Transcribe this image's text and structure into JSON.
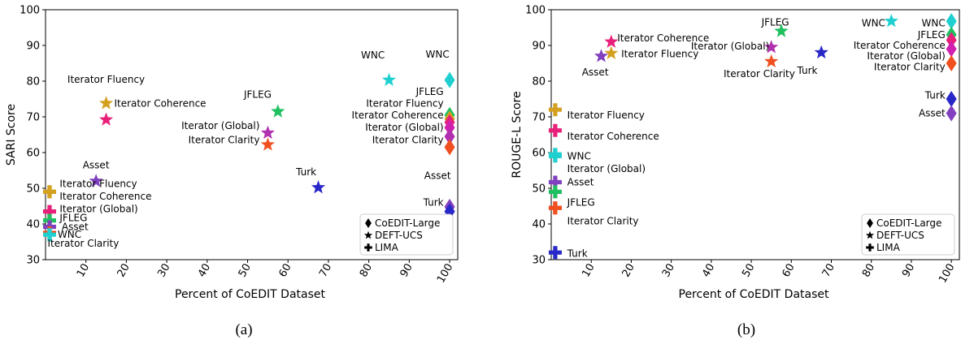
{
  "chart_data": [
    {
      "type": "scatter",
      "caption": "(a)",
      "xlabel": "Percent of CoEDIT Dataset",
      "ylabel": "SARI Score",
      "xlim": [
        0,
        102
      ],
      "ylim": [
        30,
        100
      ],
      "xticks": [
        10,
        20,
        30,
        40,
        50,
        60,
        70,
        80,
        90,
        100
      ],
      "yticks": [
        30,
        40,
        50,
        60,
        70,
        80,
        90,
        100
      ],
      "grid": false,
      "legend_position": "bottom-right",
      "legend": [
        {
          "label": "CoEDIT-Large",
          "marker": "diamond"
        },
        {
          "label": "DEFT-UCS",
          "marker": "star"
        },
        {
          "label": "LIMA",
          "marker": "plus"
        }
      ],
      "points": [
        {
          "marker": "star",
          "x": 15,
          "y": 73.8,
          "color": "#D4A020",
          "label": "Iterator Coherence",
          "lx": 17,
          "ly": 73.8,
          "anchor": "start"
        },
        {
          "marker": "star",
          "x": 15,
          "y": 69.2,
          "color": "#E8207A",
          "label": "Iterator Fluency",
          "lx": 15,
          "ly": 80.5,
          "anchor": "middle"
        },
        {
          "marker": "star",
          "x": 57.5,
          "y": 71.5,
          "color": "#20C060",
          "label": "JFLEG",
          "lx": 52.5,
          "ly": 76.3,
          "anchor": "middle"
        },
        {
          "marker": "star",
          "x": 55,
          "y": 65.5,
          "color": "#B030B0",
          "label": "Iterator (Global)",
          "lx": 53,
          "ly": 67.5,
          "anchor": "end"
        },
        {
          "marker": "star",
          "x": 55,
          "y": 62.2,
          "color": "#F05020",
          "label": "Iterator Clarity",
          "lx": 53,
          "ly": 63.5,
          "anchor": "end"
        },
        {
          "marker": "star",
          "x": 12.5,
          "y": 52,
          "color": "#8040C0",
          "label": "Asset",
          "lx": 12.5,
          "ly": 56.5,
          "anchor": "middle"
        },
        {
          "marker": "star",
          "x": 67.5,
          "y": 50.2,
          "color": "#2828C8",
          "label": "Turk",
          "lx": 64.5,
          "ly": 54.5,
          "anchor": "middle"
        },
        {
          "marker": "star",
          "x": 85,
          "y": 80.3,
          "color": "#20D0D0",
          "label": "WNC",
          "lx": 81,
          "ly": 87.3,
          "anchor": "middle"
        },
        {
          "marker": "diamond",
          "x": 100,
          "y": 80.3,
          "color": "#20D0D0",
          "label": "WNC",
          "lx": 97,
          "ly": 87.5,
          "anchor": "middle"
        },
        {
          "marker": "diamond",
          "x": 100,
          "y": 70.5,
          "color": "#20C060",
          "label": "JFLEG",
          "lx": 98.5,
          "ly": 77,
          "anchor": "end"
        },
        {
          "marker": "diamond",
          "x": 100,
          "y": 69.5,
          "color": "#D4A020",
          "label": "Iterator Fluency",
          "lx": 98.5,
          "ly": 73.7,
          "anchor": "end"
        },
        {
          "marker": "diamond",
          "x": 100,
          "y": 68.5,
          "color": "#E8207A",
          "label": "Iterator Coherence",
          "lx": 98.5,
          "ly": 70.5,
          "anchor": "end"
        },
        {
          "marker": "diamond",
          "x": 100,
          "y": 67,
          "color": "#D020B0",
          "label": "Iterator (Global)",
          "lx": 98.5,
          "ly": 67,
          "anchor": "end"
        },
        {
          "marker": "diamond",
          "x": 100,
          "y": 64.5,
          "color": "#B030B0",
          "label": "Iterator Clarity",
          "lx": 98.5,
          "ly": 63.5,
          "anchor": "end"
        },
        {
          "marker": "diamond",
          "x": 100,
          "y": 61.5,
          "color": "#F05020",
          "label": "",
          "lx": 0,
          "ly": 0,
          "anchor": "start"
        },
        {
          "marker": "diamond",
          "x": 100,
          "y": 44.8,
          "color": "#8040C0",
          "label": "Asset",
          "lx": 97,
          "ly": 53.5,
          "anchor": "middle"
        },
        {
          "marker": "diamond",
          "x": 100,
          "y": 43.5,
          "color": "#2828C8",
          "label": "Turk",
          "lx": 98.5,
          "ly": 46,
          "anchor": "end"
        },
        {
          "marker": "plus",
          "x": 1,
          "y": 49,
          "color": "#D4A020",
          "label": "Iterator Fluency",
          "lx": 3.5,
          "ly": 51.2,
          "anchor": "start"
        },
        {
          "marker": "plus",
          "x": 1,
          "y": 49,
          "color": "#D4A020",
          "label": "Iterator Coherence",
          "lx": 3.5,
          "ly": 47.7,
          "anchor": "start"
        },
        {
          "marker": "plus",
          "x": 1,
          "y": 43.5,
          "color": "#E8207A",
          "label": "Iterator (Global)",
          "lx": 3.5,
          "ly": 44.2,
          "anchor": "start"
        },
        {
          "marker": "plus",
          "x": 1,
          "y": 41,
          "color": "#20C060",
          "label": "JFLEG",
          "lx": 3.5,
          "ly": 41.7,
          "anchor": "start"
        },
        {
          "marker": "plus",
          "x": 1,
          "y": 39.2,
          "color": "#8040C0",
          "label": "Asset",
          "lx": 4,
          "ly": 39.2,
          "anchor": "start"
        },
        {
          "marker": "plus",
          "x": 1,
          "y": 37.5,
          "color": "#F05020",
          "label": "Iterator Clarity",
          "lx": 0.5,
          "ly": 34.5,
          "anchor": "start"
        },
        {
          "marker": "plus",
          "x": 1,
          "y": 37,
          "color": "#20D0D0",
          "label": "WNC",
          "lx": 3,
          "ly": 37,
          "anchor": "start"
        }
      ]
    },
    {
      "type": "scatter",
      "caption": "(b)",
      "xlabel": "Percent of CoEDIT Dataset",
      "ylabel": "ROUGE-L Score",
      "xlim": [
        0,
        102
      ],
      "ylim": [
        30,
        100
      ],
      "xticks": [
        10,
        20,
        30,
        40,
        50,
        60,
        70,
        80,
        90,
        100
      ],
      "yticks": [
        30,
        40,
        50,
        60,
        70,
        80,
        90,
        100
      ],
      "grid": false,
      "legend_position": "bottom-right",
      "legend": [
        {
          "label": "CoEDIT-Large",
          "marker": "diamond"
        },
        {
          "label": "DEFT-UCS",
          "marker": "star"
        },
        {
          "label": "LIMA",
          "marker": "plus"
        }
      ],
      "points": [
        {
          "marker": "star",
          "x": 15,
          "y": 91,
          "color": "#E8207A",
          "label": "Iterator Coherence",
          "lx": 16.5,
          "ly": 92,
          "anchor": "start"
        },
        {
          "marker": "star",
          "x": 15,
          "y": 87.8,
          "color": "#D4A020",
          "label": "Iterator Fluency",
          "lx": 17.5,
          "ly": 87.6,
          "anchor": "start"
        },
        {
          "marker": "star",
          "x": 12.5,
          "y": 87,
          "color": "#8040C0",
          "label": "Asset",
          "lx": 11,
          "ly": 82.5,
          "anchor": "middle"
        },
        {
          "marker": "star",
          "x": 57.5,
          "y": 94,
          "color": "#20C060",
          "label": "JFLEG",
          "lx": 56,
          "ly": 96.5,
          "anchor": "middle"
        },
        {
          "marker": "star",
          "x": 55,
          "y": 89.5,
          "color": "#B030B0",
          "label": "Iterator (Global)",
          "lx": 54.5,
          "ly": 89.8,
          "anchor": "end"
        },
        {
          "marker": "star",
          "x": 55,
          "y": 85.5,
          "color": "#F05020",
          "label": "Iterator Clarity",
          "lx": 52,
          "ly": 82,
          "anchor": "middle"
        },
        {
          "marker": "star",
          "x": 67.5,
          "y": 88,
          "color": "#2828C8",
          "label": "Turk",
          "lx": 64,
          "ly": 83,
          "anchor": "middle"
        },
        {
          "marker": "star",
          "x": 85,
          "y": 96.8,
          "color": "#20D0D0",
          "label": "WNC",
          "lx": 83.5,
          "ly": 96.2,
          "anchor": "end"
        },
        {
          "marker": "diamond",
          "x": 100,
          "y": 96.8,
          "color": "#20D0D0",
          "label": "WNC",
          "lx": 98.5,
          "ly": 96.2,
          "anchor": "end"
        },
        {
          "marker": "diamond",
          "x": 100,
          "y": 93,
          "color": "#20C060",
          "label": "JFLEG",
          "lx": 98.5,
          "ly": 93,
          "anchor": "end"
        },
        {
          "marker": "diamond",
          "x": 100,
          "y": 91.5,
          "color": "#E8207A",
          "label": "Iterator Coherence",
          "lx": 98.5,
          "ly": 90,
          "anchor": "end"
        },
        {
          "marker": "diamond",
          "x": 100,
          "y": 89,
          "color": "#D020B0",
          "label": "Iterator (Global)",
          "lx": 98.5,
          "ly": 87,
          "anchor": "end"
        },
        {
          "marker": "diamond",
          "x": 100,
          "y": 85,
          "color": "#F05020",
          "label": "Iterator Clarity",
          "lx": 98.5,
          "ly": 84,
          "anchor": "end"
        },
        {
          "marker": "diamond",
          "x": 100,
          "y": 75,
          "color": "#2828C8",
          "label": "Turk",
          "lx": 98.5,
          "ly": 76,
          "anchor": "end"
        },
        {
          "marker": "diamond",
          "x": 100,
          "y": 71,
          "color": "#8040C0",
          "label": "Asset",
          "lx": 98.5,
          "ly": 71,
          "anchor": "end"
        },
        {
          "marker": "plus",
          "x": 1,
          "y": 72,
          "color": "#D4A020",
          "label": "Iterator Fluency",
          "lx": 4,
          "ly": 70.5,
          "anchor": "start"
        },
        {
          "marker": "plus",
          "x": 1,
          "y": 66.2,
          "color": "#E8207A",
          "label": "Iterator Coherence",
          "lx": 4,
          "ly": 64.5,
          "anchor": "start"
        },
        {
          "marker": "plus",
          "x": 1,
          "y": 59.5,
          "color": "#20D0D0",
          "label": "WNC",
          "lx": 4,
          "ly": 59,
          "anchor": "start"
        },
        {
          "marker": "plus",
          "x": 1,
          "y": 59,
          "color": "#20D0D0",
          "label": "Iterator (Global)",
          "lx": 4,
          "ly": 55.5,
          "anchor": "start"
        },
        {
          "marker": "plus",
          "x": 1,
          "y": 51.7,
          "color": "#8040C0",
          "label": "Asset",
          "lx": 4,
          "ly": 51.7,
          "anchor": "start"
        },
        {
          "marker": "plus",
          "x": 1,
          "y": 49,
          "color": "#20C060",
          "label": "",
          "lx": 0,
          "ly": 0,
          "anchor": "start"
        },
        {
          "marker": "plus",
          "x": 1,
          "y": 44.5,
          "color": "#F05020",
          "label": "JFLEG",
          "lx": 4,
          "ly": 46,
          "anchor": "start"
        },
        {
          "marker": "plus",
          "x": 1,
          "y": 44.5,
          "color": "#F05020",
          "label": "Iterator Clarity",
          "lx": 4,
          "ly": 40.8,
          "anchor": "start"
        },
        {
          "marker": "plus",
          "x": 1,
          "y": 32,
          "color": "#2828C8",
          "label": "Turk",
          "lx": 4,
          "ly": 31.7,
          "anchor": "start"
        }
      ]
    }
  ]
}
